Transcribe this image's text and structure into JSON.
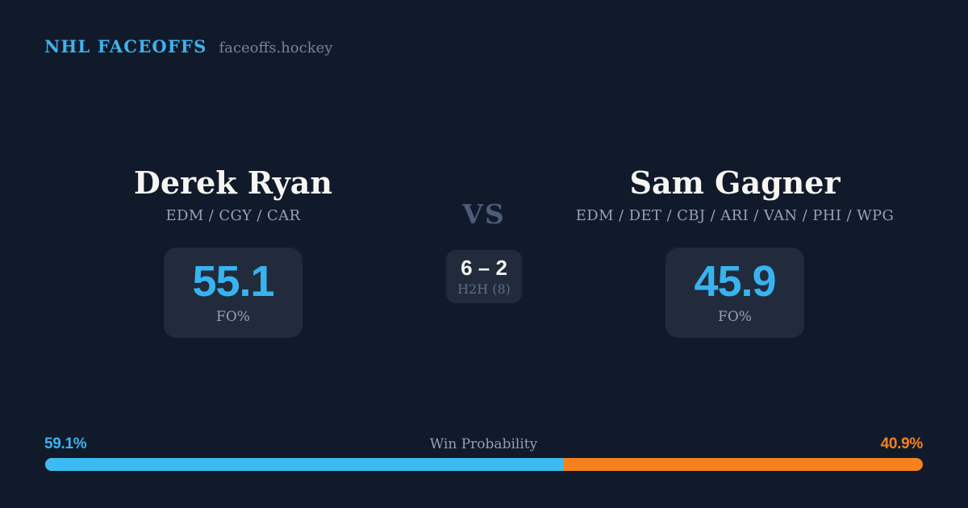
{
  "theme": {
    "background": "#111a2b",
    "panel": "#212b3c",
    "accent_blue": "#37b4f0",
    "accent_orange": "#f6821f",
    "text_white": "#f6f5f1",
    "text_slate": "#95a2b8",
    "text_muted": "#76839b",
    "text_dim": "#4d5c78"
  },
  "header": {
    "brand": "NHL FACEOFFS",
    "domain": "faceoffs.hockey"
  },
  "players": {
    "left": {
      "name": "Derek Ryan",
      "teams": "EDM / CGY / CAR",
      "fo_pct": "55.1",
      "stat_label": "FO%"
    },
    "right": {
      "name": "Sam Gagner",
      "teams": "EDM / DET / CBJ / ARI / VAN / PHI / WPG",
      "fo_pct": "45.9",
      "stat_label": "FO%"
    }
  },
  "matchup": {
    "vs_label": "VS",
    "h2h_score": "6 – 2",
    "h2h_label": "H2H (8)"
  },
  "win_probability": {
    "title": "Win Probability",
    "left_pct": "59.1%",
    "right_pct": "40.9%",
    "left_value": 59.1,
    "right_value": 40.9
  }
}
